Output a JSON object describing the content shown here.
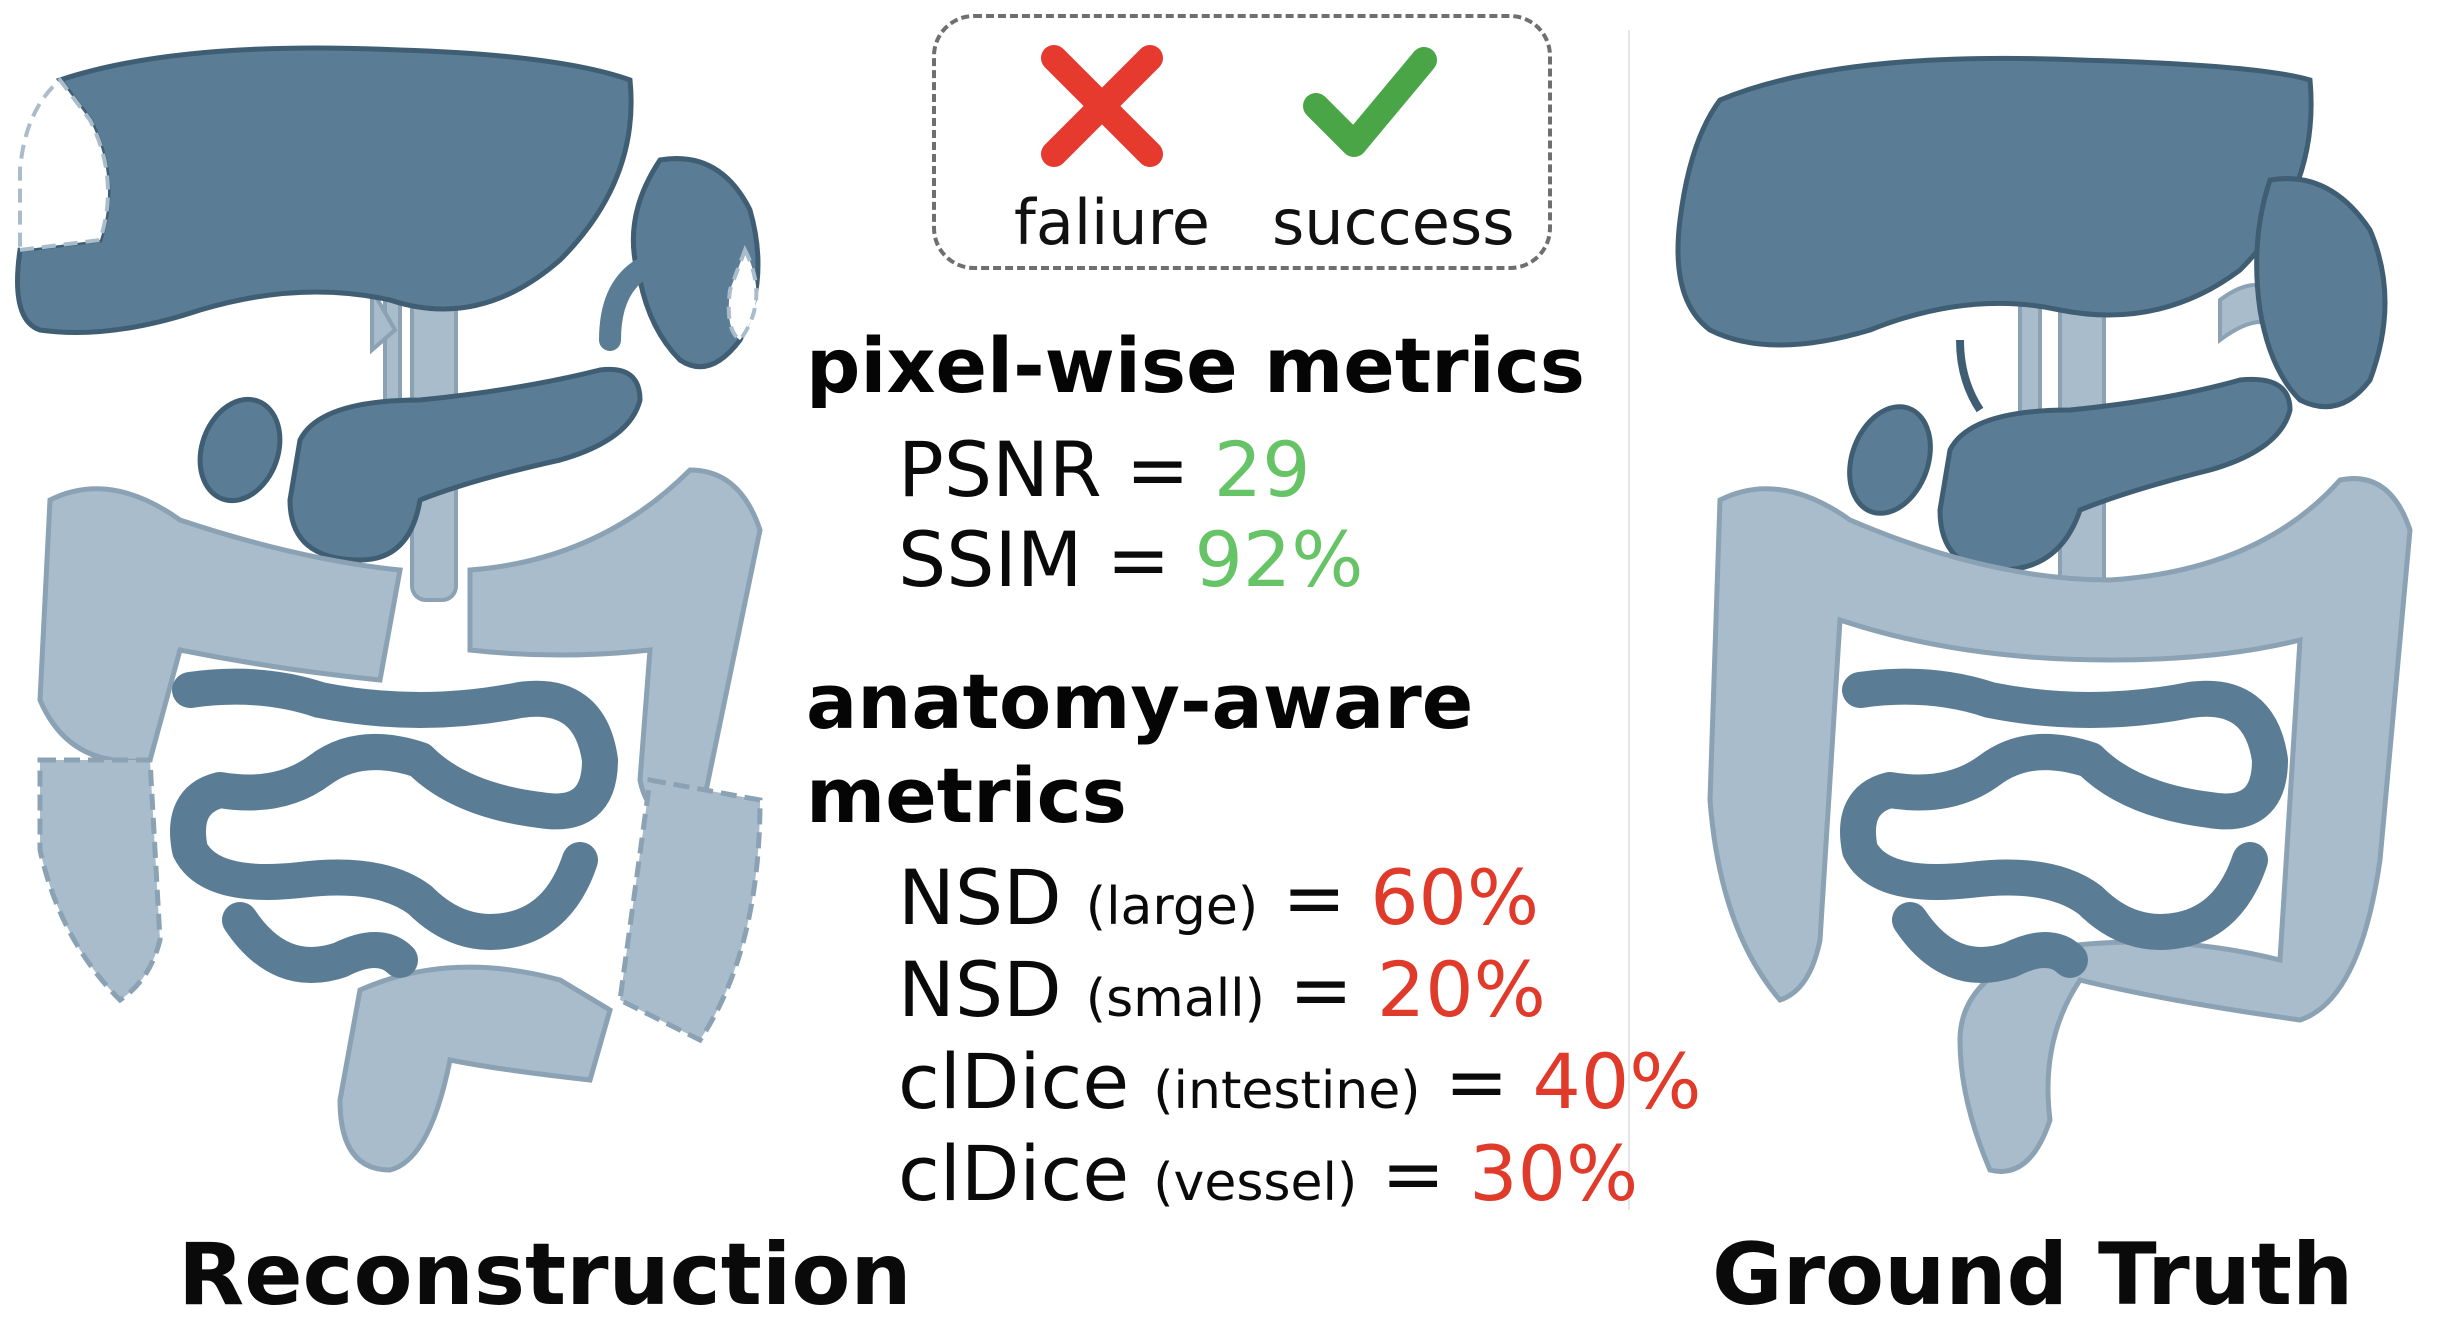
{
  "legend": {
    "failure_label": "faliure",
    "success_label": "success",
    "failure_icon": "cross-icon",
    "success_icon": "check-icon",
    "failure_color": "#e53a2d",
    "success_color": "#4aa546"
  },
  "pixel_metrics": {
    "heading": "pixel-wise metrics",
    "psnr_name": "PSNR =",
    "psnr_value": "29",
    "ssim_name": "SSIM =",
    "ssim_value": "92%"
  },
  "anatomy_metrics": {
    "heading_line1": "anatomy-aware",
    "heading_line2": "metrics",
    "rows": [
      {
        "name": "NSD",
        "qualifier": "(large)",
        "eq": "=",
        "value": "60%"
      },
      {
        "name": "NSD",
        "qualifier": "(small)",
        "eq": "=",
        "value": "20%"
      },
      {
        "name": "clDice",
        "qualifier": "(intestine)",
        "eq": "=",
        "value": "40%"
      },
      {
        "name": "clDice",
        "qualifier": "(vessel)",
        "eq": "=",
        "value": "30%"
      }
    ]
  },
  "captions": {
    "left": "Reconstruction",
    "right": "Ground Truth"
  },
  "colors": {
    "organ_dark": "#5a7d95",
    "organ_dark_stroke": "#3f5e73",
    "organ_light": "#a9bccb",
    "organ_light_stroke": "#8aa2b4",
    "good": "#66c466",
    "bad": "#e03a2a"
  }
}
